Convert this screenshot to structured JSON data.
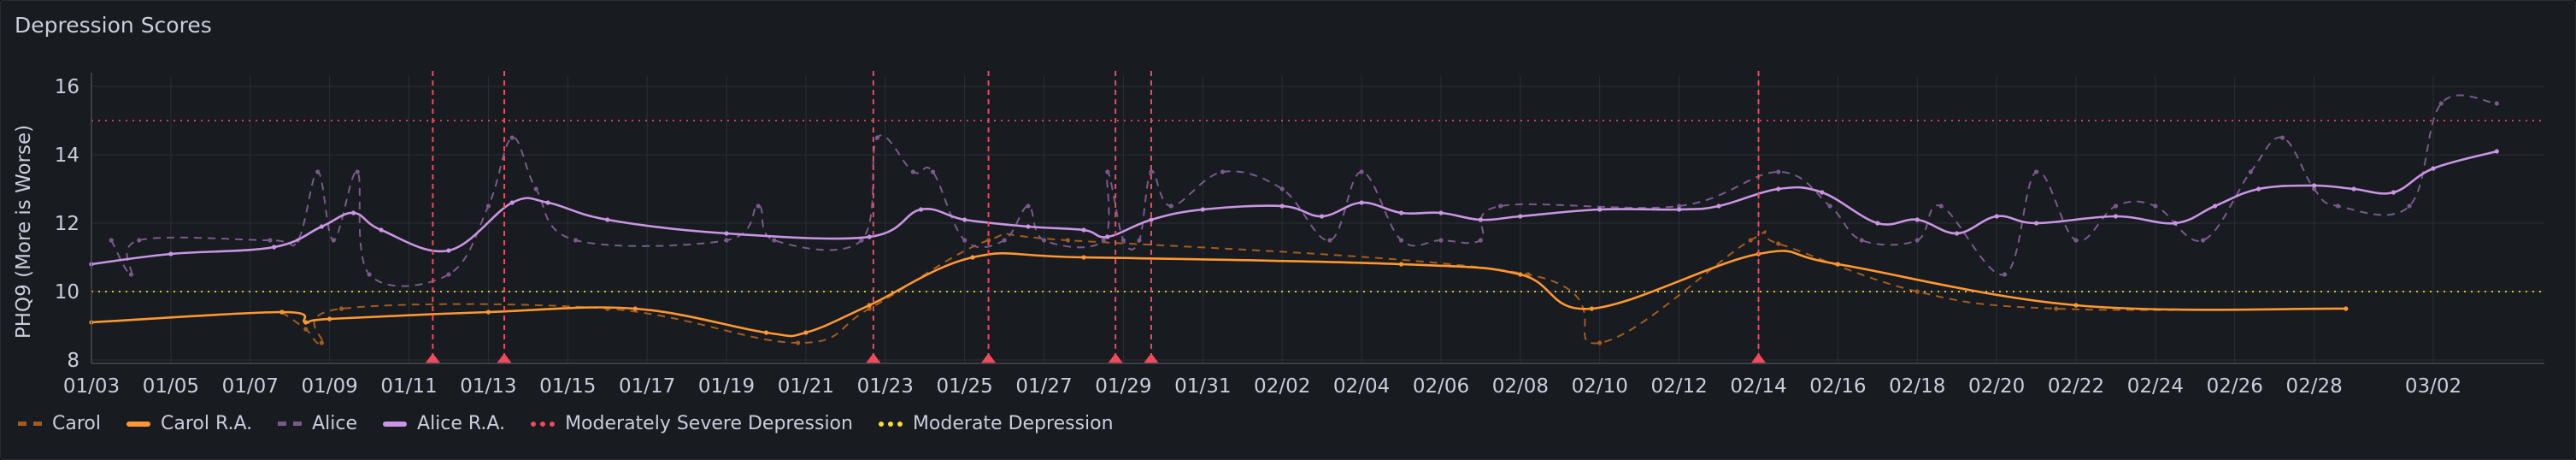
{
  "panel": {
    "title": "Depression Scores"
  },
  "colors": {
    "carol": "#ff9830",
    "carol_raw": "#a35c1c",
    "alice": "#ca95e5",
    "alice_raw": "#7a5a8c",
    "mod_severe": "#f2495c",
    "moderate": "#fade2a"
  },
  "chart_data": {
    "type": "line",
    "title": "Depression Scores",
    "xlabel": "",
    "ylabel": "PHQ9 (More is Worse)",
    "ylim": [
      7.9,
      16.3
    ],
    "y_ticks": [
      8,
      10,
      12,
      14,
      16
    ],
    "x_range": [
      "01/03",
      "03/03"
    ],
    "x_ticks": [
      "01/03",
      "01/05",
      "01/07",
      "01/09",
      "01/11",
      "01/13",
      "01/15",
      "01/17",
      "01/19",
      "01/21",
      "01/23",
      "01/25",
      "01/27",
      "01/29",
      "01/31",
      "02/02",
      "02/04",
      "02/06",
      "02/08",
      "02/10",
      "02/12",
      "02/14",
      "02/16",
      "02/18",
      "02/20",
      "02/22",
      "02/24",
      "02/26",
      "02/28",
      "03/02"
    ],
    "grid": true,
    "legend_position": "bottom-left",
    "thresholds": [
      {
        "name": "Moderately Severe Depression",
        "value": 15,
        "color": "#f2495c"
      },
      {
        "name": "Moderate Depression",
        "value": 10,
        "color": "#fade2a"
      }
    ],
    "annotations": [
      {
        "x": "01/11.6"
      },
      {
        "x": "01/13.4"
      },
      {
        "x": "01/22.7"
      },
      {
        "x": "01/25.6"
      },
      {
        "x": "01/28.8"
      },
      {
        "x": "01/29.7"
      },
      {
        "x": "02/14.0"
      }
    ],
    "series": [
      {
        "name": "Carol",
        "style": "dashed",
        "color": "#a35c1c",
        "points": [
          [
            "01/07.8",
            9.4
          ],
          [
            "01/08.4",
            8.9
          ],
          [
            "01/08.8",
            8.5
          ],
          [
            "01/09.3",
            9.5
          ],
          [
            "01/16.0",
            9.5
          ],
          [
            "01/20.8",
            8.5
          ],
          [
            "01/22.6",
            9.5
          ],
          [
            "01/25.6",
            11.5
          ],
          [
            "01/27.6",
            11.5
          ],
          [
            "02/08.2",
            10.5
          ],
          [
            "02/10.0",
            8.5
          ],
          [
            "02/13.8",
            11.5
          ],
          [
            "02/14.5",
            11.4
          ],
          [
            "02/18.0",
            10.0
          ],
          [
            "02/21.5",
            9.5
          ],
          [
            "02/28.8",
            9.5
          ]
        ]
      },
      {
        "name": "Carol R.A.",
        "style": "solid",
        "color": "#ff9830",
        "points": [
          [
            "01/03.0",
            9.1
          ],
          [
            "01/07.8",
            9.4
          ],
          [
            "01/08.4",
            9.1
          ],
          [
            "01/09.0",
            9.2
          ],
          [
            "01/13.0",
            9.4
          ],
          [
            "01/16.7",
            9.5
          ],
          [
            "01/20.0",
            8.8
          ],
          [
            "01/21.0",
            8.8
          ],
          [
            "01/22.6",
            9.6
          ],
          [
            "01/25.2",
            11.0
          ],
          [
            "01/28.0",
            11.0
          ],
          [
            "02/05.0",
            10.8
          ],
          [
            "02/08.0",
            10.5
          ],
          [
            "02/09.8",
            9.5
          ],
          [
            "02/14.0",
            11.1
          ],
          [
            "02/16.0",
            10.8
          ],
          [
            "02/22.0",
            9.6
          ],
          [
            "02/28.8",
            9.5
          ]
        ]
      },
      {
        "name": "Alice",
        "style": "dashed",
        "color": "#7a5a8c",
        "points": [
          [
            "01/03.5",
            11.5
          ],
          [
            "01/04.0",
            10.5
          ],
          [
            "01/04.2",
            11.5
          ],
          [
            "01/07.5",
            11.5
          ],
          [
            "01/08.2",
            11.5
          ],
          [
            "01/08.7",
            13.5
          ],
          [
            "01/09.1",
            11.5
          ],
          [
            "01/09.7",
            13.5
          ],
          [
            "01/10.0",
            10.5
          ],
          [
            "01/12.0",
            10.5
          ],
          [
            "01/13.0",
            12.5
          ],
          [
            "01/13.6",
            14.5
          ],
          [
            "01/14.2",
            13.0
          ],
          [
            "01/15.2",
            11.5
          ],
          [
            "01/19.0",
            11.5
          ],
          [
            "01/19.8",
            12.5
          ],
          [
            "01/20.2",
            11.5
          ],
          [
            "01/22.4",
            11.5
          ],
          [
            "01/22.8",
            14.5
          ],
          [
            "01/23.7",
            13.5
          ],
          [
            "01/24.2",
            13.5
          ],
          [
            "01/25.0",
            11.5
          ],
          [
            "01/26.0",
            11.5
          ],
          [
            "01/26.6",
            12.5
          ],
          [
            "01/27.0",
            11.5
          ],
          [
            "01/28.5",
            11.5
          ],
          [
            "01/28.6",
            13.5
          ],
          [
            "01/29.0",
            11.5
          ],
          [
            "01/29.4",
            11.5
          ],
          [
            "01/29.7",
            13.5
          ],
          [
            "01/30.2",
            12.5
          ],
          [
            "01/31.5",
            13.5
          ],
          [
            "02/02.0",
            13.0
          ],
          [
            "02/03.2",
            11.5
          ],
          [
            "02/04.0",
            13.5
          ],
          [
            "02/05.0",
            11.5
          ],
          [
            "02/06.0",
            11.5
          ],
          [
            "02/07.0",
            11.5
          ],
          [
            "02/07.5",
            12.5
          ],
          [
            "02/12.0",
            12.5
          ],
          [
            "02/14.5",
            13.5
          ],
          [
            "02/15.8",
            12.5
          ],
          [
            "02/16.6",
            11.5
          ],
          [
            "02/18.0",
            11.5
          ],
          [
            "02/18.6",
            12.5
          ],
          [
            "02/20.2",
            10.5
          ],
          [
            "02/21.0",
            13.5
          ],
          [
            "02/22.0",
            11.5
          ],
          [
            "02/23.0",
            12.5
          ],
          [
            "02/24.0",
            12.5
          ],
          [
            "02/25.2",
            11.5
          ],
          [
            "02/26.4",
            13.5
          ],
          [
            "02/27.2",
            14.5
          ],
          [
            "02/28.0",
            13.0
          ],
          [
            "02/28.6",
            12.5
          ],
          [
            "03/01.4",
            12.5
          ],
          [
            "03/02.2",
            15.5
          ],
          [
            "03/03.6",
            15.5
          ]
        ]
      },
      {
        "name": "Alice R.A.",
        "style": "solid",
        "color": "#ca95e5",
        "points": [
          [
            "01/03.0",
            10.8
          ],
          [
            "01/05.0",
            11.1
          ],
          [
            "01/07.6",
            11.3
          ],
          [
            "01/08.8",
            11.9
          ],
          [
            "01/09.6",
            12.3
          ],
          [
            "01/10.3",
            11.8
          ],
          [
            "01/12.0",
            11.2
          ],
          [
            "01/13.6",
            12.6
          ],
          [
            "01/14.5",
            12.6
          ],
          [
            "01/16.0",
            12.1
          ],
          [
            "01/19.0",
            11.7
          ],
          [
            "01/22.6",
            11.6
          ],
          [
            "01/23.9",
            12.4
          ],
          [
            "01/25.0",
            12.1
          ],
          [
            "01/26.6",
            11.9
          ],
          [
            "01/28.0",
            11.8
          ],
          [
            "01/28.6",
            11.6
          ],
          [
            "01/29.7",
            12.1
          ],
          [
            "01/31.0",
            12.4
          ],
          [
            "02/02.0",
            12.5
          ],
          [
            "02/03.0",
            12.2
          ],
          [
            "02/04.0",
            12.6
          ],
          [
            "02/05.0",
            12.3
          ],
          [
            "02/06.0",
            12.3
          ],
          [
            "02/07.0",
            12.1
          ],
          [
            "02/08.0",
            12.2
          ],
          [
            "02/10.0",
            12.4
          ],
          [
            "02/12.0",
            12.4
          ],
          [
            "02/13.0",
            12.5
          ],
          [
            "02/14.5",
            13.0
          ],
          [
            "02/15.6",
            12.9
          ],
          [
            "02/17.0",
            12.0
          ],
          [
            "02/18.0",
            12.1
          ],
          [
            "02/19.0",
            11.7
          ],
          [
            "02/20.0",
            12.2
          ],
          [
            "02/21.0",
            12.0
          ],
          [
            "02/23.0",
            12.2
          ],
          [
            "02/24.5",
            12.0
          ],
          [
            "02/25.5",
            12.5
          ],
          [
            "02/26.6",
            13.0
          ],
          [
            "02/28.0",
            13.1
          ],
          [
            "02/29.0",
            13.0
          ],
          [
            "03/01.0",
            12.9
          ],
          [
            "03/02.0",
            13.6
          ],
          [
            "03/03.6",
            14.1
          ]
        ]
      }
    ]
  },
  "legend": {
    "items": [
      {
        "label": "Carol",
        "style": "dashed",
        "color": "#a35c1c"
      },
      {
        "label": "Carol R.A.",
        "style": "solid",
        "color": "#ff9830"
      },
      {
        "label": "Alice",
        "style": "dashed",
        "color": "#7a5a8c"
      },
      {
        "label": "Alice R.A.",
        "style": "solid",
        "color": "#ca95e5"
      },
      {
        "label": "Moderately Severe Depression",
        "style": "dotted",
        "color": "#f2495c"
      },
      {
        "label": "Moderate Depression",
        "style": "dotted",
        "color": "#fade2a"
      }
    ]
  }
}
